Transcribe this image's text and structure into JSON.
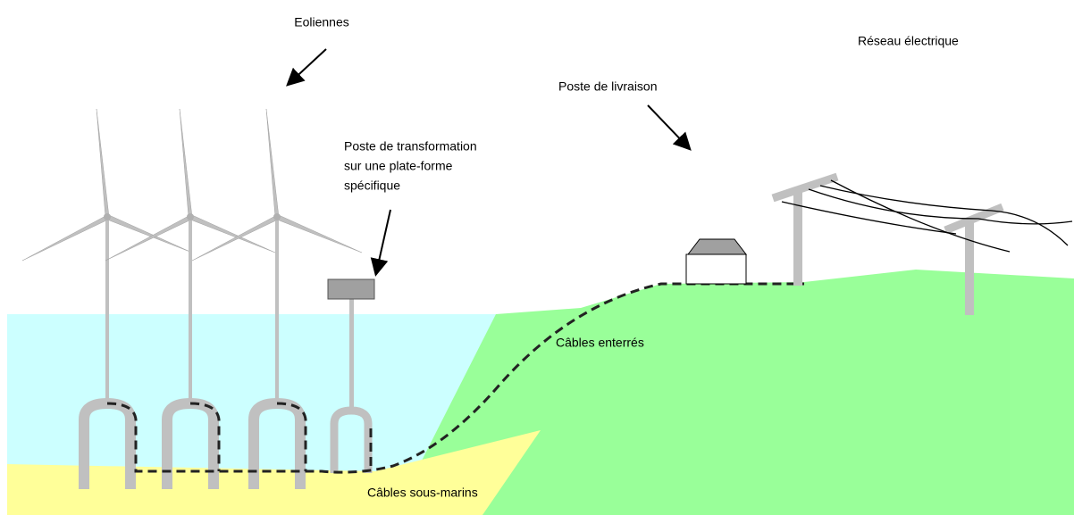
{
  "labels": {
    "eoliennes": "Eoliennes",
    "reseau": "Réseau électrique",
    "poste_livraison": "Poste de livraison",
    "poste_transformation": [
      "Poste de transformation",
      "sur une plate-forme",
      "spécifique"
    ],
    "cables_enterres": "Câbles enterrés",
    "cables_sous_marins": "Câbles sous-marins"
  }
}
